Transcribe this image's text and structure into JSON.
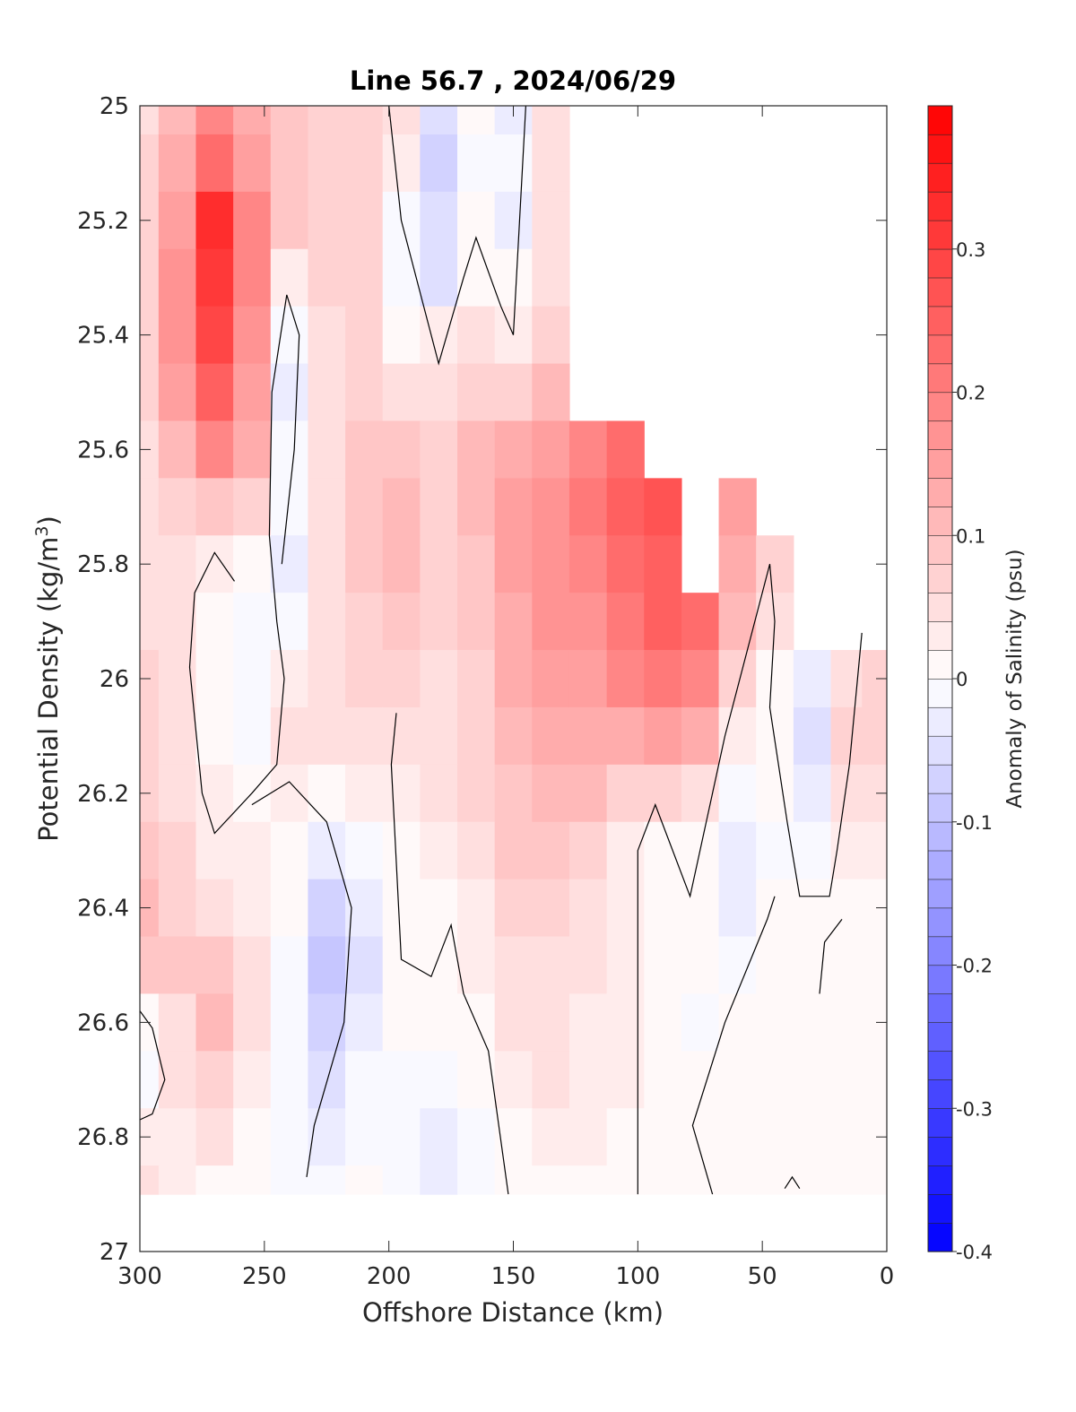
{
  "chart_data": {
    "type": "heatmap",
    "title": "Line 56.7 , 2024/06/29",
    "xlabel": "Offshore Distance (km)",
    "ylabel": "Potential Density (kg/m",
    "ylabel_sup": "3",
    "ylabel_close": ")",
    "colorbar_label": "Anomaly of Salinity (psu)",
    "xlim": [
      300,
      0
    ],
    "ylim": [
      25,
      27
    ],
    "y_reversed": true,
    "grid": false,
    "x_ticks": [
      "300",
      "250",
      "200",
      "150",
      "100",
      "50",
      "0"
    ],
    "y_ticks": [
      "25",
      "25.2",
      "25.4",
      "25.6",
      "25.8",
      "26",
      "26.2",
      "26.4",
      "26.6",
      "26.8",
      "27"
    ],
    "colorbar": {
      "range": [
        -0.4,
        0.4
      ],
      "levels": 40,
      "ticks": [
        "0.3",
        "0.2",
        "0.1",
        "0",
        "-0.1",
        "-0.2",
        "-0.3",
        "-0.4"
      ],
      "colors": {
        "positive": "#ff0000",
        "zero": "#ffffff",
        "negative": "#0000ff"
      }
    },
    "x": [
      300,
      285,
      270,
      255,
      240,
      225,
      210,
      195,
      180,
      165,
      150,
      135,
      120,
      105,
      90,
      75,
      60,
      45,
      30,
      15,
      5
    ],
    "y": [
      25.0,
      25.1,
      25.2,
      25.3,
      25.4,
      25.5,
      25.6,
      25.7,
      25.8,
      25.9,
      26.0,
      26.1,
      26.2,
      26.3,
      26.4,
      26.5,
      26.6,
      26.7,
      26.8,
      26.9
    ],
    "z": [
      [
        0.05,
        0.1,
        0.18,
        0.12,
        0.08,
        0.06,
        0.06,
        0.05,
        -0.06,
        0.0,
        -0.03,
        0.04,
        null,
        null,
        null,
        null,
        null,
        null,
        null,
        null,
        null
      ],
      [
        0.06,
        0.12,
        0.22,
        0.14,
        0.09,
        0.07,
        0.06,
        0.02,
        -0.07,
        -0.01,
        -0.02,
        0.05,
        null,
        null,
        null,
        null,
        null,
        null,
        null,
        null,
        null
      ],
      [
        0.07,
        0.15,
        0.32,
        0.18,
        0.08,
        0.07,
        0.06,
        -0.01,
        -0.06,
        0.01,
        -0.03,
        0.05,
        null,
        null,
        null,
        null,
        null,
        null,
        null,
        null,
        null
      ],
      [
        0.07,
        0.16,
        0.31,
        0.18,
        0.02,
        0.06,
        0.06,
        -0.02,
        -0.05,
        0.0,
        0.0,
        0.05,
        null,
        null,
        null,
        null,
        null,
        null,
        null,
        null,
        null
      ],
      [
        0.07,
        0.16,
        0.28,
        0.17,
        -0.01,
        0.05,
        0.06,
        0.0,
        0.02,
        0.04,
        0.03,
        0.06,
        null,
        null,
        null,
        null,
        null,
        null,
        null,
        null,
        null
      ],
      [
        0.06,
        0.15,
        0.24,
        0.15,
        -0.03,
        0.04,
        0.07,
        0.04,
        0.05,
        0.07,
        0.07,
        0.1,
        null,
        null,
        null,
        null,
        null,
        null,
        null,
        null,
        null
      ],
      [
        0.05,
        0.11,
        0.18,
        0.12,
        -0.02,
        0.04,
        0.08,
        0.08,
        0.07,
        0.1,
        0.12,
        0.14,
        0.18,
        0.22,
        null,
        null,
        null,
        null,
        null,
        null,
        null
      ],
      [
        0.05,
        0.07,
        0.09,
        0.06,
        -0.02,
        0.04,
        0.08,
        0.1,
        0.07,
        0.1,
        0.14,
        0.16,
        0.2,
        0.24,
        0.26,
        null,
        0.14,
        null,
        null,
        null,
        null
      ],
      [
        0.05,
        0.04,
        0.02,
        0.0,
        -0.03,
        0.04,
        0.08,
        0.1,
        0.06,
        0.09,
        0.14,
        0.16,
        0.18,
        0.22,
        0.25,
        null,
        0.12,
        0.06,
        null,
        null,
        null
      ],
      [
        0.05,
        0.04,
        0.0,
        -0.02,
        -0.01,
        0.05,
        0.07,
        0.08,
        0.06,
        0.08,
        0.13,
        0.16,
        0.17,
        0.2,
        0.24,
        0.22,
        0.1,
        0.04,
        null,
        null,
        null
      ],
      [
        0.06,
        0.04,
        0.0,
        -0.01,
        0.03,
        0.05,
        0.06,
        0.07,
        0.05,
        0.07,
        0.12,
        0.15,
        0.15,
        0.18,
        0.2,
        0.19,
        0.07,
        0.01,
        -0.04,
        0.05,
        0.06
      ],
      [
        0.07,
        0.05,
        0.01,
        -0.02,
        0.04,
        0.04,
        0.04,
        0.05,
        0.05,
        0.07,
        0.11,
        0.13,
        0.13,
        0.12,
        0.14,
        0.12,
        0.03,
        0.0,
        -0.05,
        0.06,
        0.07
      ],
      [
        0.07,
        0.05,
        0.02,
        0.0,
        0.03,
        0.01,
        0.02,
        0.03,
        0.04,
        0.07,
        0.09,
        0.11,
        0.1,
        0.06,
        0.06,
        0.05,
        -0.02,
        0.0,
        -0.04,
        0.04,
        0.05
      ],
      [
        0.08,
        0.06,
        0.03,
        0.02,
        0.0,
        -0.04,
        -0.02,
        0.01,
        0.03,
        0.05,
        0.08,
        0.08,
        0.07,
        0.03,
        0.01,
        0.0,
        -0.04,
        -0.01,
        -0.02,
        0.02,
        0.03
      ],
      [
        0.1,
        0.07,
        0.05,
        0.03,
        0.0,
        -0.07,
        -0.04,
        0.0,
        0.01,
        0.03,
        0.06,
        0.06,
        0.05,
        0.03,
        0.0,
        0.0,
        -0.03,
        0.0,
        0.0,
        0.0,
        0.0
      ],
      [
        0.08,
        0.08,
        0.09,
        0.05,
        -0.01,
        -0.09,
        -0.05,
        0.0,
        0.0,
        0.02,
        0.05,
        0.05,
        0.04,
        0.03,
        0.0,
        0.0,
        -0.02,
        0.0,
        0.0,
        0.0,
        0.0
      ],
      [
        0.0,
        0.05,
        0.1,
        0.05,
        -0.01,
        -0.08,
        -0.04,
        0.0,
        0.0,
        0.01,
        0.04,
        0.05,
        0.03,
        0.02,
        0.0,
        -0.02,
        0.0,
        0.0,
        0.0,
        0.0,
        0.0
      ],
      [
        -0.02,
        0.04,
        0.07,
        0.03,
        -0.01,
        -0.05,
        -0.02,
        -0.02,
        -0.02,
        0.0,
        0.03,
        0.04,
        0.03,
        0.02,
        0.0,
        0.0,
        0.0,
        0.0,
        0.0,
        0.0,
        0.0
      ],
      [
        0.02,
        0.03,
        0.04,
        0.01,
        -0.02,
        -0.03,
        -0.01,
        -0.02,
        -0.04,
        -0.02,
        0.0,
        0.02,
        0.02,
        0.01,
        0.0,
        0.0,
        0.0,
        0.0,
        0.0,
        0.0,
        0.0
      ],
      [
        0.04,
        0.02,
        0.01,
        0.0,
        -0.01,
        -0.01,
        0.0,
        -0.02,
        -0.03,
        -0.02,
        0.0,
        0.01,
        0.01,
        0.0,
        0.0,
        0.0,
        0.0,
        0.0,
        0.0,
        0.0,
        0.0
      ]
    ],
    "zero_contours": [
      [
        [
          300,
          26.58
        ],
        [
          295,
          26.61
        ],
        [
          290,
          26.7
        ],
        [
          295,
          26.76
        ],
        [
          300,
          26.77
        ]
      ],
      [
        [
          233,
          26.87
        ],
        [
          230,
          26.78
        ],
        [
          218,
          26.6
        ],
        [
          215,
          26.4
        ],
        [
          225,
          26.25
        ],
        [
          240,
          26.18
        ],
        [
          255,
          26.22
        ]
      ],
      [
        [
          243,
          25.8
        ],
        [
          238,
          25.6
        ],
        [
          236,
          25.4
        ],
        [
          241,
          25.33
        ],
        [
          247,
          25.5
        ],
        [
          248,
          25.75
        ],
        [
          245,
          25.9
        ],
        [
          242,
          26.0
        ],
        [
          245,
          26.15
        ],
        [
          255,
          26.2
        ],
        [
          270,
          26.27
        ],
        [
          275,
          26.2
        ],
        [
          280,
          25.98
        ],
        [
          278,
          25.85
        ],
        [
          270,
          25.78
        ],
        [
          262,
          25.83
        ]
      ],
      [
        [
          197,
          26.06
        ],
        [
          199,
          26.15
        ],
        [
          195,
          26.49
        ],
        [
          183,
          26.52
        ],
        [
          175,
          26.43
        ],
        [
          170,
          26.55
        ],
        [
          160,
          26.65
        ],
        [
          152,
          26.9
        ]
      ],
      [
        [
          200,
          25.0
        ],
        [
          195,
          25.2
        ],
        [
          180,
          25.45
        ],
        [
          170,
          25.3
        ],
        [
          165,
          25.23
        ],
        [
          155,
          25.35
        ],
        [
          150,
          25.4
        ],
        [
          145,
          25.0
        ]
      ],
      [
        [
          100,
          26.9
        ],
        [
          100,
          26.3
        ],
        [
          93,
          26.22
        ],
        [
          79,
          26.38
        ],
        [
          65,
          26.1
        ],
        [
          47,
          25.8
        ],
        [
          45,
          25.9
        ],
        [
          47,
          26.05
        ],
        [
          40,
          26.25
        ],
        [
          35,
          26.38
        ],
        [
          23,
          26.38
        ],
        [
          20,
          26.3
        ],
        [
          15,
          26.15
        ],
        [
          10,
          25.92
        ]
      ],
      [
        [
          70,
          26.9
        ],
        [
          78,
          26.78
        ],
        [
          65,
          26.6
        ],
        [
          48,
          26.42
        ],
        [
          45,
          26.38
        ]
      ],
      [
        [
          27,
          26.55
        ],
        [
          25,
          26.46
        ],
        [
          18,
          26.42
        ]
      ],
      [
        [
          41,
          26.89
        ],
        [
          38,
          26.87
        ],
        [
          35,
          26.89
        ]
      ]
    ]
  }
}
